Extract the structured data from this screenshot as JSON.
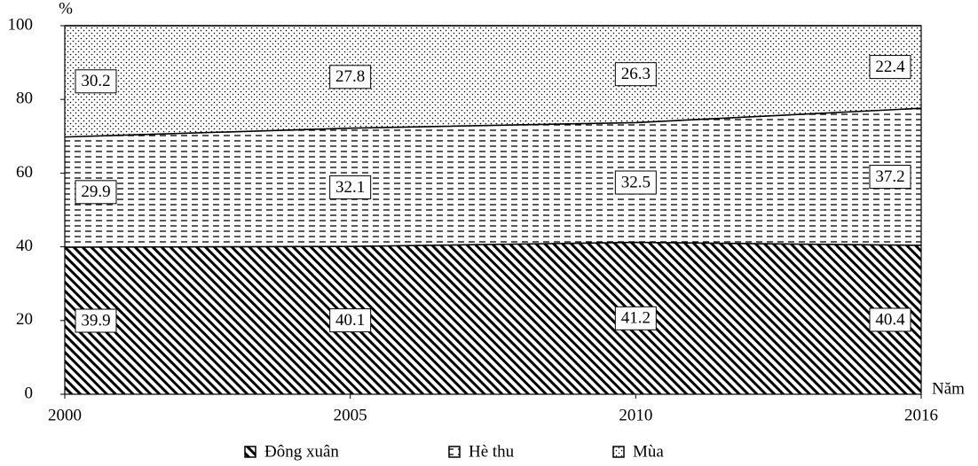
{
  "chart_data": {
    "type": "stacked-area",
    "y_label": "%",
    "x_label": "Năm",
    "categories": [
      "2000",
      "2005",
      "2010",
      "2016"
    ],
    "ylim": [
      0,
      100
    ],
    "yticks": [
      0,
      20,
      40,
      60,
      80,
      100
    ],
    "series": [
      {
        "name": "Đông xuân",
        "values": [
          39.9,
          40.1,
          41.2,
          40.4
        ]
      },
      {
        "name": "Hè thu",
        "values": [
          29.9,
          32.1,
          32.5,
          37.2
        ]
      },
      {
        "name": "Mùa",
        "values": [
          30.2,
          27.8,
          26.3,
          22.4
        ]
      }
    ]
  }
}
